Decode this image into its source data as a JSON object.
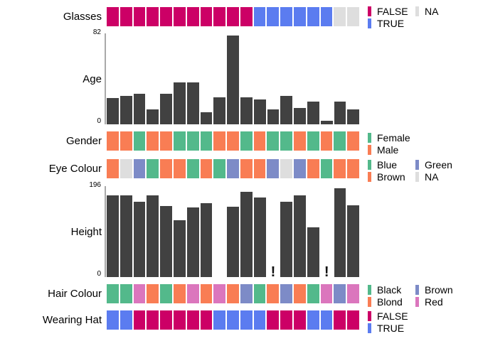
{
  "colors": {
    "false": "#CC0066",
    "true": "#5B7CF0",
    "na": "#DEDEDE",
    "green": "#53B98B",
    "orange": "#F97D54",
    "purple": "#7D8BC7",
    "pink": "#DB76BD",
    "bar": "#414141",
    "axis": "#A9A9A9"
  },
  "missing_marker": "!",
  "chart_data": {
    "type": "table-plot",
    "observations": 19,
    "rows": [
      {
        "id": "glasses",
        "label": "Glasses",
        "kind": "tiles",
        "values": [
          "FALSE",
          "FALSE",
          "FALSE",
          "FALSE",
          "FALSE",
          "FALSE",
          "FALSE",
          "FALSE",
          "FALSE",
          "FALSE",
          "FALSE",
          "TRUE",
          "TRUE",
          "TRUE",
          "TRUE",
          "TRUE",
          "TRUE",
          "NA",
          "NA"
        ],
        "palette": {
          "FALSE": "false",
          "TRUE": "true",
          "NA": "na"
        },
        "legend": [
          {
            "col": 1,
            "label": "FALSE",
            "colorKey": "false"
          },
          {
            "col": 1,
            "label": "TRUE",
            "colorKey": "true"
          },
          {
            "col": 2,
            "label": "NA",
            "colorKey": "na"
          }
        ]
      },
      {
        "id": "age",
        "label": "Age",
        "kind": "bars",
        "axis_max_label": "82",
        "axis_min_label": "0",
        "max": 82,
        "values": [
          24,
          26,
          28,
          14,
          28,
          39,
          39,
          11,
          25,
          82,
          25,
          23,
          14,
          26,
          15,
          21,
          3,
          21,
          14
        ]
      },
      {
        "id": "gender",
        "label": "Gender",
        "kind": "tiles",
        "values": [
          "Male",
          "Male",
          "Female",
          "Male",
          "Male",
          "Female",
          "Female",
          "Female",
          "Male",
          "Male",
          "Female",
          "Male",
          "Female",
          "Female",
          "Male",
          "Female",
          "Male",
          "Female",
          "Male"
        ],
        "palette": {
          "Female": "green",
          "Male": "orange"
        },
        "legend": [
          {
            "col": 1,
            "label": "Female",
            "colorKey": "green"
          },
          {
            "col": 1,
            "label": "Male",
            "colorKey": "orange"
          }
        ]
      },
      {
        "id": "eye_colour",
        "label": "Eye Colour",
        "kind": "tiles",
        "values": [
          "Brown",
          "NA",
          "Green",
          "Blue",
          "Brown",
          "Brown",
          "Blue",
          "Brown",
          "Blue",
          "Green",
          "Brown",
          "Brown",
          "Green",
          "NA",
          "Green",
          "Brown",
          "Blue",
          "Brown",
          "Brown"
        ],
        "palette": {
          "Blue": "green",
          "Brown": "orange",
          "Green": "purple",
          "NA": "na"
        },
        "legend": [
          {
            "col": 1,
            "label": "Blue",
            "colorKey": "green"
          },
          {
            "col": 1,
            "label": "Brown",
            "colorKey": "orange"
          },
          {
            "col": 2,
            "label": "Green",
            "colorKey": "purple"
          },
          {
            "col": 2,
            "label": "NA",
            "colorKey": "na"
          }
        ]
      },
      {
        "id": "height",
        "label": "Height",
        "kind": "bars",
        "axis_max_label": "196",
        "axis_min_label": "0",
        "max": 196,
        "values": [
          180,
          180,
          167,
          181,
          157,
          126,
          154,
          163,
          null,
          155,
          188,
          176,
          "NA",
          166,
          180,
          110,
          "NA",
          196,
          158
        ]
      },
      {
        "id": "hair_colour",
        "label": "Hair Colour",
        "kind": "tiles",
        "values": [
          "Black",
          "Black",
          "Red",
          "Blond",
          "Black",
          "Blond",
          "Red",
          "Blond",
          "Red",
          "Blond",
          "Brown",
          "Black",
          "Blond",
          "Brown",
          "Blond",
          "Black",
          "Red",
          "Brown",
          "Red"
        ],
        "palette": {
          "Black": "green",
          "Blond": "orange",
          "Brown": "purple",
          "Red": "pink"
        },
        "legend": [
          {
            "col": 1,
            "label": "Black",
            "colorKey": "green"
          },
          {
            "col": 1,
            "label": "Blond",
            "colorKey": "orange"
          },
          {
            "col": 2,
            "label": "Brown",
            "colorKey": "purple"
          },
          {
            "col": 2,
            "label": "Red",
            "colorKey": "pink"
          }
        ]
      },
      {
        "id": "wearing_hat",
        "label": "Wearing Hat",
        "kind": "tiles",
        "values": [
          "TRUE",
          "TRUE",
          "FALSE",
          "FALSE",
          "FALSE",
          "FALSE",
          "FALSE",
          "FALSE",
          "TRUE",
          "TRUE",
          "TRUE",
          "TRUE",
          "FALSE",
          "FALSE",
          "FALSE",
          "TRUE",
          "TRUE",
          "FALSE",
          "FALSE"
        ],
        "palette": {
          "FALSE": "false",
          "TRUE": "true"
        },
        "legend": [
          {
            "col": 1,
            "label": "FALSE",
            "colorKey": "false"
          },
          {
            "col": 1,
            "label": "TRUE",
            "colorKey": "true"
          }
        ]
      }
    ]
  }
}
